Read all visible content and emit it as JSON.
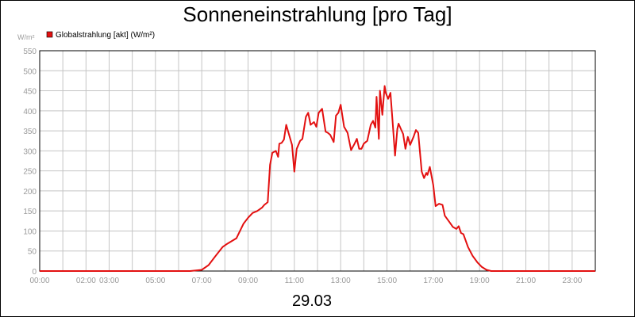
{
  "chart_data": {
    "type": "line",
    "title": "Sonneneinstrahlung [pro Tag]",
    "ylabel": "W/m²",
    "xlabel": "29.03",
    "ylim": [
      0,
      550
    ],
    "yticks": [
      0,
      50,
      100,
      150,
      200,
      250,
      300,
      350,
      400,
      450,
      500,
      550
    ],
    "xlim": [
      0,
      24
    ],
    "xticks": [
      {
        "x": 0,
        "label": "00:00"
      },
      {
        "x": 2,
        "label": "02:00"
      },
      {
        "x": 3,
        "label": "03:00"
      },
      {
        "x": 5,
        "label": "05:00"
      },
      {
        "x": 7,
        "label": "07:00"
      },
      {
        "x": 9,
        "label": "09:00"
      },
      {
        "x": 11,
        "label": "11:00"
      },
      {
        "x": 13,
        "label": "13:00"
      },
      {
        "x": 15,
        "label": "15:00"
      },
      {
        "x": 17,
        "label": "17:00"
      },
      {
        "x": 19,
        "label": "19:00"
      },
      {
        "x": 21,
        "label": "21:00"
      },
      {
        "x": 23,
        "label": "23:00"
      }
    ],
    "grid": true,
    "legend_position": "top-left",
    "series": [
      {
        "name": "Globalstrahlung [akt] (W/m²)",
        "color": "#e31010",
        "x": [
          0,
          6.5,
          7.0,
          7.3,
          7.6,
          7.9,
          8.1,
          8.3,
          8.5,
          8.8,
          9.0,
          9.2,
          9.4,
          9.6,
          9.7,
          9.85,
          9.95,
          10.05,
          10.2,
          10.3,
          10.35,
          10.45,
          10.55,
          10.65,
          10.75,
          10.9,
          11.0,
          11.1,
          11.25,
          11.35,
          11.5,
          11.6,
          11.7,
          11.85,
          11.95,
          12.05,
          12.2,
          12.35,
          12.45,
          12.55,
          12.7,
          12.8,
          12.9,
          13.0,
          13.15,
          13.3,
          13.45,
          13.6,
          13.7,
          13.8,
          13.9,
          14.0,
          14.15,
          14.3,
          14.4,
          14.5,
          14.55,
          14.65,
          14.7,
          14.8,
          14.9,
          14.95,
          15.05,
          15.15,
          15.25,
          15.35,
          15.45,
          15.5,
          15.6,
          15.7,
          15.8,
          15.9,
          16.0,
          16.15,
          16.25,
          16.35,
          16.5,
          16.6,
          16.7,
          16.75,
          16.85,
          17.0,
          17.1,
          17.25,
          17.4,
          17.5,
          17.7,
          17.85,
          18.0,
          18.1,
          18.2,
          18.3,
          18.5,
          18.7,
          18.9,
          19.1,
          19.3,
          19.5,
          19.7,
          19.9,
          24
        ],
        "y": [
          0,
          0,
          3,
          15,
          38,
          60,
          68,
          75,
          82,
          118,
          133,
          145,
          150,
          158,
          165,
          172,
          265,
          295,
          300,
          285,
          318,
          320,
          328,
          365,
          345,
          315,
          248,
          305,
          325,
          330,
          385,
          395,
          365,
          372,
          360,
          395,
          405,
          348,
          345,
          340,
          322,
          388,
          395,
          415,
          360,
          345,
          302,
          318,
          330,
          305,
          305,
          318,
          325,
          365,
          375,
          358,
          435,
          330,
          450,
          390,
          462,
          445,
          430,
          445,
          368,
          288,
          355,
          368,
          355,
          342,
          305,
          335,
          315,
          335,
          352,
          345,
          248,
          232,
          245,
          240,
          260,
          215,
          162,
          168,
          165,
          138,
          122,
          110,
          105,
          112,
          95,
          92,
          60,
          38,
          22,
          10,
          3,
          0,
          0,
          0,
          0
        ]
      }
    ]
  }
}
